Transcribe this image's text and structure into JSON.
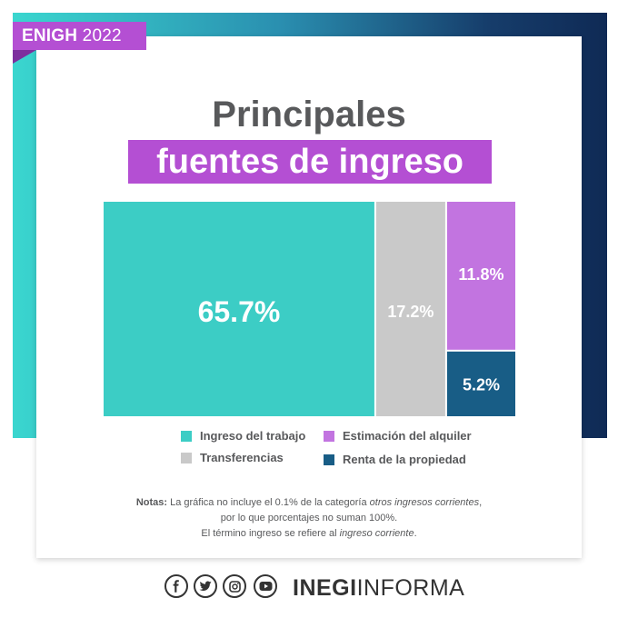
{
  "badge": {
    "bold": "ENIGH",
    "light": "2022"
  },
  "title": {
    "line1": "Principales",
    "line2": "fuentes de ingreso"
  },
  "chart_data": {
    "type": "treemap",
    "title": "Principales fuentes de ingreso",
    "unit": "%",
    "items": [
      {
        "name": "Ingreso del trabajo",
        "value": 65.7,
        "label": "65.7%",
        "color": "#3ccdc5"
      },
      {
        "name": "Transferencias",
        "value": 17.2,
        "label": "17.2%",
        "color": "#c9c9c9"
      },
      {
        "name": "Estimación del alquiler",
        "value": 11.8,
        "label": "11.8%",
        "color": "#c274e0"
      },
      {
        "name": "Renta de la propiedad",
        "value": 5.2,
        "label": "5.2%",
        "color": "#185d86"
      }
    ]
  },
  "legend": {
    "items": [
      {
        "label": "Ingreso del trabajo",
        "color": "#3ccdc5"
      },
      {
        "label": "Estimación del alquiler",
        "color": "#c274e0"
      },
      {
        "label": "Transferencias",
        "color": "#c9c9c9"
      },
      {
        "label": "Renta de la propiedad",
        "color": "#185d86"
      }
    ]
  },
  "notes": {
    "label": "Notas:",
    "line1_a": "La gráfica no incluye el 0.1% de la categoría",
    "line1_em": "otros ingresos corrientes",
    "line1_b": ",",
    "line2": "por lo que porcentajes no suman 100%.",
    "line3_a": "El término ingreso se refiere al",
    "line3_em": "ingreso corriente",
    "line3_b": "."
  },
  "footer": {
    "icons": [
      "facebook-icon",
      "twitter-icon",
      "instagram-icon",
      "youtube-icon"
    ],
    "brand_bold": "INEGI",
    "brand_light": "INFORMA"
  }
}
